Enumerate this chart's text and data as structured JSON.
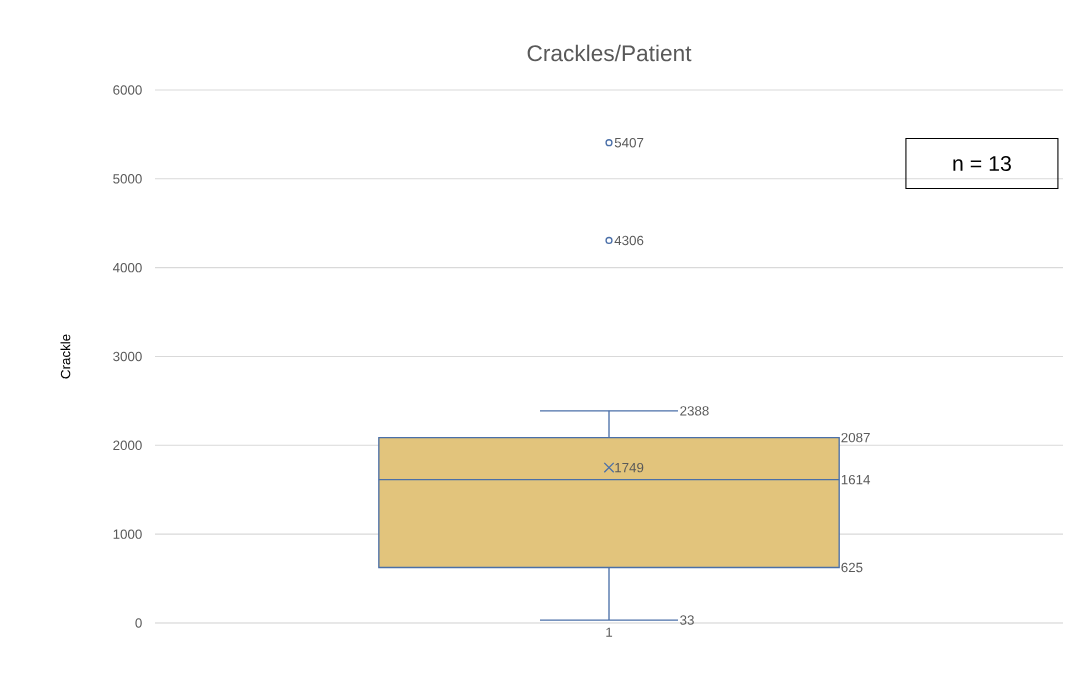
{
  "chart_data": {
    "type": "box",
    "title": "Crackles/Patient",
    "ylabel": "Crackle",
    "categories": [
      "1"
    ],
    "boxes": [
      {
        "low": 33,
        "q1": 625,
        "median": 1614,
        "q3": 2087,
        "high": 2388,
        "mean": 1749,
        "outliers": [
          4306,
          5407
        ]
      }
    ],
    "color": "#e2c47c",
    "ylim": [
      0,
      6000
    ],
    "yticks": [
      0,
      1000,
      2000,
      3000,
      4000,
      5000,
      6000
    ],
    "grid": "y",
    "annotations": [
      "n = 13",
      "33",
      "2388",
      "625",
      "1614",
      "2087",
      "1749",
      "4306",
      "5407"
    ]
  }
}
